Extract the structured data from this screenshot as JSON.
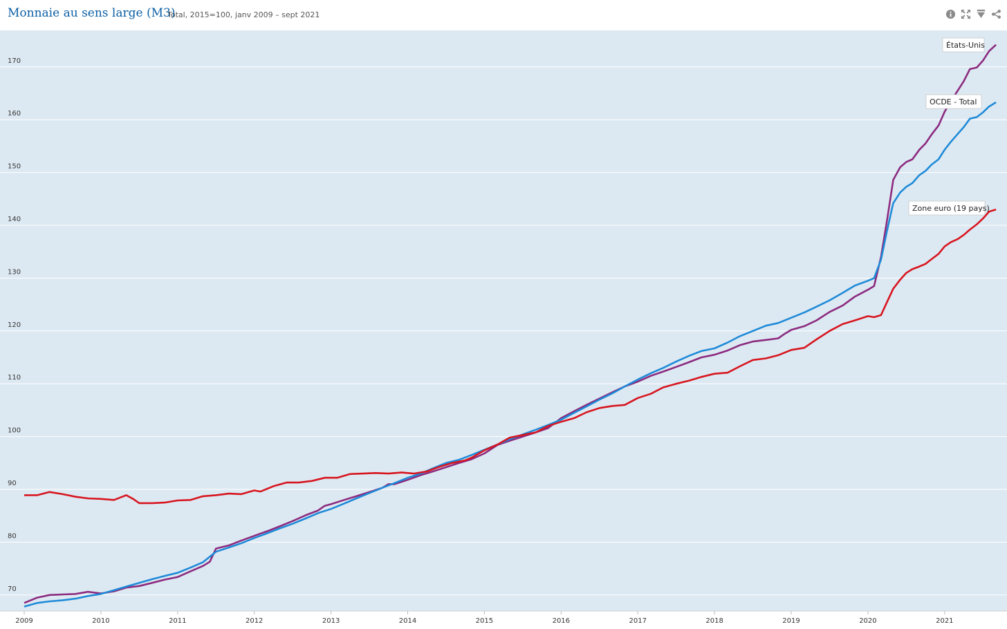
{
  "header": {
    "title": "Monnaie au sens large (M3)",
    "subtitle": "Total, 2015=100, janv 2009 – sept 2021",
    "tools": [
      {
        "name": "info-icon"
      },
      {
        "name": "fullscreen-icon"
      },
      {
        "name": "download-icon"
      },
      {
        "name": "share-icon"
      }
    ]
  },
  "colors": {
    "background": "#dde9f2",
    "gridline": "#ffffff",
    "title": "#0b5fa5"
  },
  "chart_data": {
    "type": "line",
    "title": "Monnaie au sens large (M3)",
    "subtitle": "Total, 2015=100, janv 2009 – sept 2021",
    "xlabel": "",
    "ylabel": "",
    "xlim": [
      2009.0,
      2021.75
    ],
    "ylim": [
      68,
      176
    ],
    "yticks": [
      70,
      80,
      90,
      100,
      110,
      120,
      130,
      140,
      150,
      160,
      170
    ],
    "xticks": [
      "2009",
      "2010",
      "2011",
      "2012",
      "2013",
      "2014",
      "2015",
      "2016",
      "2017",
      "2018",
      "2019",
      "2020",
      "2021"
    ],
    "grid": true,
    "legend": "inline labels at line ends",
    "series": [
      {
        "name": "États-Unis",
        "color": "#8b2a7f",
        "points": [
          [
            2009.0,
            68.5
          ],
          [
            2009.17,
            69.5
          ],
          [
            2009.33,
            70.0
          ],
          [
            2009.5,
            70.1
          ],
          [
            2009.67,
            70.2
          ],
          [
            2009.83,
            70.6
          ],
          [
            2010.0,
            70.3
          ],
          [
            2010.17,
            70.7
          ],
          [
            2010.33,
            71.4
          ],
          [
            2010.5,
            71.7
          ],
          [
            2010.67,
            72.3
          ],
          [
            2010.83,
            72.9
          ],
          [
            2011.0,
            73.4
          ],
          [
            2011.17,
            74.5
          ],
          [
            2011.33,
            75.5
          ],
          [
            2011.42,
            76.3
          ],
          [
            2011.5,
            78.8
          ],
          [
            2011.67,
            79.4
          ],
          [
            2011.83,
            80.3
          ],
          [
            2012.0,
            81.2
          ],
          [
            2012.17,
            82.1
          ],
          [
            2012.33,
            83.0
          ],
          [
            2012.5,
            84.0
          ],
          [
            2012.67,
            85.1
          ],
          [
            2012.83,
            86.0
          ],
          [
            2012.92,
            86.9
          ],
          [
            2013.0,
            87.2
          ],
          [
            2013.17,
            88.0
          ],
          [
            2013.33,
            88.7
          ],
          [
            2013.5,
            89.5
          ],
          [
            2013.67,
            90.3
          ],
          [
            2013.75,
            91.0
          ],
          [
            2013.83,
            91.0
          ],
          [
            2014.0,
            91.8
          ],
          [
            2014.17,
            92.7
          ],
          [
            2014.33,
            93.4
          ],
          [
            2014.5,
            94.2
          ],
          [
            2014.67,
            95.0
          ],
          [
            2014.83,
            95.7
          ],
          [
            2015.0,
            96.8
          ],
          [
            2015.17,
            98.4
          ],
          [
            2015.33,
            99.2
          ],
          [
            2015.5,
            100.0
          ],
          [
            2015.67,
            100.8
          ],
          [
            2015.83,
            101.6
          ],
          [
            2016.0,
            103.5
          ],
          [
            2016.17,
            104.8
          ],
          [
            2016.33,
            106.0
          ],
          [
            2016.5,
            107.2
          ],
          [
            2016.67,
            108.4
          ],
          [
            2016.83,
            109.5
          ],
          [
            2017.0,
            110.4
          ],
          [
            2017.17,
            111.5
          ],
          [
            2017.33,
            112.3
          ],
          [
            2017.5,
            113.2
          ],
          [
            2017.67,
            114.1
          ],
          [
            2017.83,
            115.0
          ],
          [
            2018.0,
            115.5
          ],
          [
            2018.17,
            116.3
          ],
          [
            2018.33,
            117.3
          ],
          [
            2018.5,
            118.0
          ],
          [
            2018.67,
            118.3
          ],
          [
            2018.83,
            118.6
          ],
          [
            2018.92,
            119.5
          ],
          [
            2019.0,
            120.2
          ],
          [
            2019.17,
            120.9
          ],
          [
            2019.33,
            122.0
          ],
          [
            2019.5,
            123.6
          ],
          [
            2019.67,
            124.8
          ],
          [
            2019.83,
            126.5
          ],
          [
            2020.0,
            127.8
          ],
          [
            2020.08,
            128.5
          ],
          [
            2020.17,
            134.0
          ],
          [
            2020.25,
            141.0
          ],
          [
            2020.33,
            148.6
          ],
          [
            2020.42,
            151.0
          ],
          [
            2020.5,
            152.0
          ],
          [
            2020.58,
            152.5
          ],
          [
            2020.67,
            154.3
          ],
          [
            2020.75,
            155.5
          ],
          [
            2020.83,
            157.2
          ],
          [
            2020.92,
            158.9
          ],
          [
            2021.0,
            161.5
          ],
          [
            2021.08,
            163.5
          ],
          [
            2021.17,
            165.5
          ],
          [
            2021.25,
            167.3
          ],
          [
            2021.33,
            169.6
          ],
          [
            2021.42,
            169.9
          ],
          [
            2021.5,
            171.2
          ],
          [
            2021.58,
            173.0
          ],
          [
            2021.67,
            174.2
          ]
        ],
        "label": "États-Unis"
      },
      {
        "name": "OCDE - Total",
        "color": "#1e8ad8",
        "points": [
          [
            2009.0,
            67.8
          ],
          [
            2009.17,
            68.5
          ],
          [
            2009.33,
            68.8
          ],
          [
            2009.5,
            69.0
          ],
          [
            2009.67,
            69.3
          ],
          [
            2009.83,
            69.8
          ],
          [
            2010.0,
            70.2
          ],
          [
            2010.17,
            70.9
          ],
          [
            2010.33,
            71.6
          ],
          [
            2010.5,
            72.3
          ],
          [
            2010.67,
            73.0
          ],
          [
            2010.83,
            73.6
          ],
          [
            2011.0,
            74.2
          ],
          [
            2011.17,
            75.2
          ],
          [
            2011.33,
            76.2
          ],
          [
            2011.5,
            78.2
          ],
          [
            2011.67,
            79.0
          ],
          [
            2011.83,
            79.8
          ],
          [
            2012.0,
            80.8
          ],
          [
            2012.17,
            81.7
          ],
          [
            2012.33,
            82.6
          ],
          [
            2012.5,
            83.5
          ],
          [
            2012.67,
            84.5
          ],
          [
            2012.83,
            85.5
          ],
          [
            2013.0,
            86.3
          ],
          [
            2013.17,
            87.3
          ],
          [
            2013.33,
            88.3
          ],
          [
            2013.5,
            89.3
          ],
          [
            2013.67,
            90.3
          ],
          [
            2013.83,
            91.2
          ],
          [
            2014.0,
            92.2
          ],
          [
            2014.17,
            93.0
          ],
          [
            2014.33,
            94.0
          ],
          [
            2014.5,
            95.0
          ],
          [
            2014.67,
            95.6
          ],
          [
            2014.83,
            96.5
          ],
          [
            2015.0,
            97.5
          ],
          [
            2015.17,
            98.5
          ],
          [
            2015.33,
            99.5
          ],
          [
            2015.5,
            100.4
          ],
          [
            2015.67,
            101.3
          ],
          [
            2015.83,
            102.2
          ],
          [
            2016.0,
            103.2
          ],
          [
            2016.17,
            104.5
          ],
          [
            2016.33,
            105.7
          ],
          [
            2016.5,
            107.0
          ],
          [
            2016.67,
            108.2
          ],
          [
            2016.83,
            109.5
          ],
          [
            2017.0,
            110.8
          ],
          [
            2017.17,
            112.0
          ],
          [
            2017.33,
            113.0
          ],
          [
            2017.5,
            114.2
          ],
          [
            2017.67,
            115.3
          ],
          [
            2017.83,
            116.2
          ],
          [
            2018.0,
            116.7
          ],
          [
            2018.17,
            117.8
          ],
          [
            2018.33,
            119.0
          ],
          [
            2018.5,
            120.0
          ],
          [
            2018.67,
            121.0
          ],
          [
            2018.83,
            121.5
          ],
          [
            2019.0,
            122.5
          ],
          [
            2019.17,
            123.5
          ],
          [
            2019.33,
            124.6
          ],
          [
            2019.5,
            125.8
          ],
          [
            2019.67,
            127.2
          ],
          [
            2019.83,
            128.6
          ],
          [
            2020.0,
            129.5
          ],
          [
            2020.08,
            130.0
          ],
          [
            2020.17,
            133.5
          ],
          [
            2020.25,
            139.0
          ],
          [
            2020.33,
            144.2
          ],
          [
            2020.42,
            146.2
          ],
          [
            2020.5,
            147.3
          ],
          [
            2020.58,
            148.0
          ],
          [
            2020.67,
            149.5
          ],
          [
            2020.75,
            150.3
          ],
          [
            2020.83,
            151.5
          ],
          [
            2020.92,
            152.5
          ],
          [
            2021.0,
            154.3
          ],
          [
            2021.08,
            155.8
          ],
          [
            2021.17,
            157.3
          ],
          [
            2021.25,
            158.6
          ],
          [
            2021.33,
            160.2
          ],
          [
            2021.42,
            160.5
          ],
          [
            2021.5,
            161.4
          ],
          [
            2021.58,
            162.5
          ],
          [
            2021.67,
            163.3
          ]
        ],
        "label": "OCDE - Total"
      },
      {
        "name": "Zone euro (19 pays)",
        "color": "#d7151f",
        "points": [
          [
            2009.0,
            88.9
          ],
          [
            2009.17,
            88.9
          ],
          [
            2009.33,
            89.5
          ],
          [
            2009.5,
            89.1
          ],
          [
            2009.67,
            88.6
          ],
          [
            2009.83,
            88.3
          ],
          [
            2010.0,
            88.2
          ],
          [
            2010.17,
            88.0
          ],
          [
            2010.33,
            88.9
          ],
          [
            2010.42,
            88.2
          ],
          [
            2010.5,
            87.4
          ],
          [
            2010.67,
            87.4
          ],
          [
            2010.83,
            87.5
          ],
          [
            2011.0,
            87.9
          ],
          [
            2011.17,
            88.0
          ],
          [
            2011.33,
            88.7
          ],
          [
            2011.5,
            88.9
          ],
          [
            2011.67,
            89.2
          ],
          [
            2011.83,
            89.1
          ],
          [
            2012.0,
            89.8
          ],
          [
            2012.08,
            89.6
          ],
          [
            2012.25,
            90.6
          ],
          [
            2012.42,
            91.3
          ],
          [
            2012.58,
            91.3
          ],
          [
            2012.75,
            91.6
          ],
          [
            2012.92,
            92.2
          ],
          [
            2013.08,
            92.2
          ],
          [
            2013.25,
            92.9
          ],
          [
            2013.42,
            93.0
          ],
          [
            2013.58,
            93.1
          ],
          [
            2013.75,
            93.0
          ],
          [
            2013.92,
            93.2
          ],
          [
            2014.08,
            93.0
          ],
          [
            2014.25,
            93.4
          ],
          [
            2014.42,
            94.3
          ],
          [
            2014.58,
            95.0
          ],
          [
            2014.75,
            95.5
          ],
          [
            2014.83,
            96.0
          ],
          [
            2015.0,
            97.4
          ],
          [
            2015.17,
            98.5
          ],
          [
            2015.33,
            99.8
          ],
          [
            2015.5,
            100.3
          ],
          [
            2015.67,
            100.8
          ],
          [
            2015.83,
            102.0
          ],
          [
            2016.0,
            102.8
          ],
          [
            2016.17,
            103.5
          ],
          [
            2016.33,
            104.6
          ],
          [
            2016.5,
            105.4
          ],
          [
            2016.67,
            105.8
          ],
          [
            2016.83,
            106.0
          ],
          [
            2017.0,
            107.3
          ],
          [
            2017.17,
            108.1
          ],
          [
            2017.33,
            109.3
          ],
          [
            2017.5,
            110.0
          ],
          [
            2017.67,
            110.6
          ],
          [
            2017.83,
            111.3
          ],
          [
            2018.0,
            111.9
          ],
          [
            2018.17,
            112.1
          ],
          [
            2018.33,
            113.3
          ],
          [
            2018.5,
            114.5
          ],
          [
            2018.67,
            114.8
          ],
          [
            2018.83,
            115.4
          ],
          [
            2019.0,
            116.4
          ],
          [
            2019.17,
            116.8
          ],
          [
            2019.33,
            118.4
          ],
          [
            2019.5,
            120.0
          ],
          [
            2019.67,
            121.3
          ],
          [
            2019.83,
            122.0
          ],
          [
            2020.0,
            122.8
          ],
          [
            2020.08,
            122.6
          ],
          [
            2020.17,
            123.0
          ],
          [
            2020.25,
            125.5
          ],
          [
            2020.33,
            128.0
          ],
          [
            2020.42,
            129.7
          ],
          [
            2020.5,
            131.0
          ],
          [
            2020.58,
            131.7
          ],
          [
            2020.67,
            132.2
          ],
          [
            2020.75,
            132.7
          ],
          [
            2020.83,
            133.6
          ],
          [
            2020.92,
            134.6
          ],
          [
            2021.0,
            136.0
          ],
          [
            2021.08,
            136.8
          ],
          [
            2021.17,
            137.4
          ],
          [
            2021.25,
            138.2
          ],
          [
            2021.33,
            139.2
          ],
          [
            2021.42,
            140.2
          ],
          [
            2021.5,
            141.3
          ],
          [
            2021.58,
            142.6
          ],
          [
            2021.67,
            143.0
          ]
        ],
        "label": "Zone euro (19 pays)"
      }
    ]
  }
}
